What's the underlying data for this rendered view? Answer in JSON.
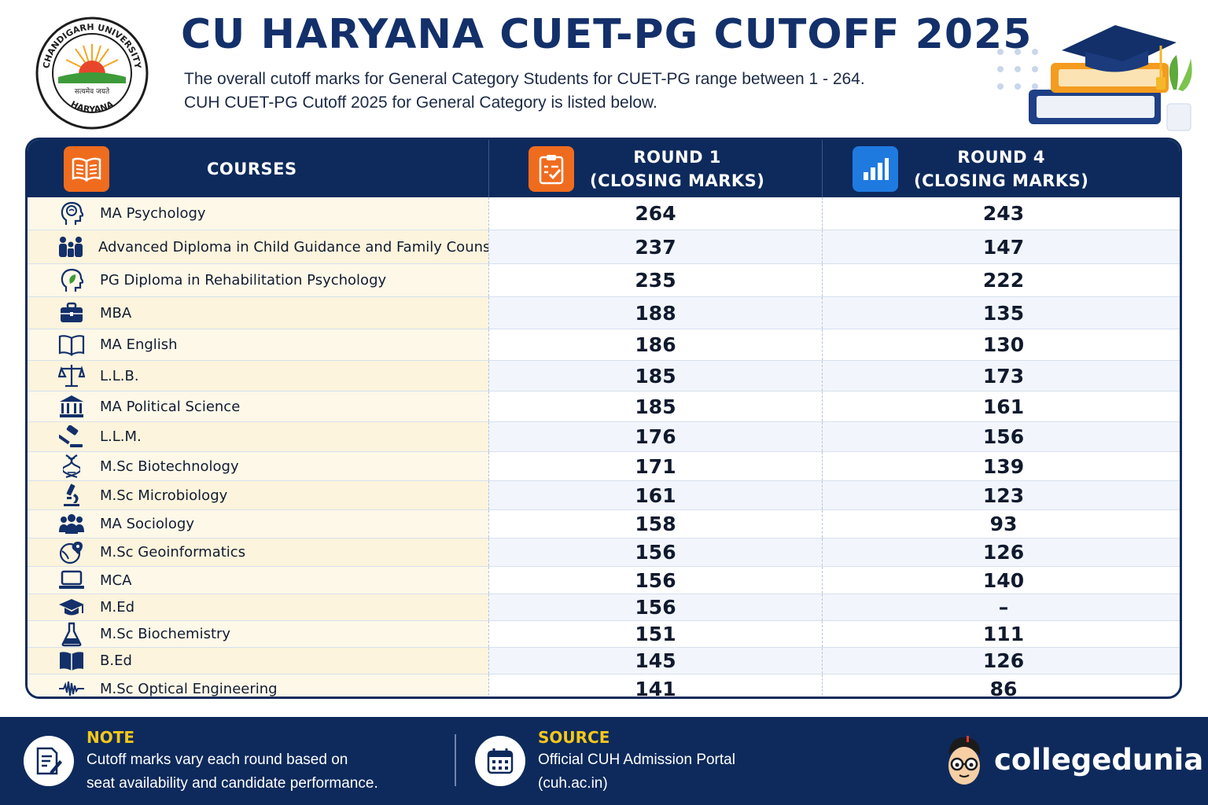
{
  "header": {
    "title": "CU HARYANA CUET-PG CUTOFF 2025",
    "subtitle_line1": "The overall cutoff marks for General Category Students for CUET-PG range between 1 - 264.",
    "subtitle_line2": "CUH CUET-PG Cutoff 2025 for General Category is listed below.",
    "logo": {
      "top_text": "CHANDIGARH UNIVERSITY",
      "bottom_text": "HARYANA",
      "motto": "सत्यमेव जयते"
    }
  },
  "table": {
    "headers": {
      "courses": "COURSES",
      "round1_line1": "ROUND 1",
      "round1_line2": "(CLOSING MARKS)",
      "round4_line1": "ROUND 4",
      "round4_line2": "(CLOSING MARKS)"
    },
    "header_icons": [
      "open-book-icon",
      "clipboard-check-icon",
      "bar-chart-icon"
    ],
    "rows": [
      {
        "icon": "brain-head-icon",
        "course": "MA Psychology",
        "round1": "264",
        "round4": "243"
      },
      {
        "icon": "family-icon",
        "course": "Advanced Diploma in Child Guidance and Family Counselling",
        "round1": "237",
        "round4": "147"
      },
      {
        "icon": "head-leaf-icon",
        "course": "PG Diploma in Rehabilitation Psychology",
        "round1": "235",
        "round4": "222"
      },
      {
        "icon": "briefcase-icon",
        "course": "MBA",
        "round1": "188",
        "round4": "135"
      },
      {
        "icon": "open-book-icon",
        "course": "MA English",
        "round1": "186",
        "round4": "130"
      },
      {
        "icon": "scales-icon",
        "course": "L.L.B.",
        "round1": "185",
        "round4": "173"
      },
      {
        "icon": "government-building-icon",
        "course": "MA Political Science",
        "round1": "185",
        "round4": "161"
      },
      {
        "icon": "gavel-icon",
        "course": "L.L.M.",
        "round1": "176",
        "round4": "156"
      },
      {
        "icon": "dna-icon",
        "course": "M.Sc Biotechnology",
        "round1": "171",
        "round4": "139"
      },
      {
        "icon": "microscope-icon",
        "course": "M.Sc Microbiology",
        "round1": "161",
        "round4": "123"
      },
      {
        "icon": "group-icon",
        "course": "MA Sociology",
        "round1": "158",
        "round4": "93"
      },
      {
        "icon": "globe-pin-icon",
        "course": "M.Sc Geoinformatics",
        "round1": "156",
        "round4": "126"
      },
      {
        "icon": "laptop-icon",
        "course": "MCA",
        "round1": "156",
        "round4": "140"
      },
      {
        "icon": "graduation-cap-icon",
        "course": "M.Ed",
        "round1": "156",
        "round4": "–"
      },
      {
        "icon": "flask-icon",
        "course": "M.Sc Biochemistry",
        "round1": "151",
        "round4": "111"
      },
      {
        "icon": "book-icon",
        "course": "B.Ed",
        "round1": "145",
        "round4": "126"
      },
      {
        "icon": "waveform-icon",
        "course": "M.Sc Optical Engineering",
        "round1": "141",
        "round4": "86"
      }
    ]
  },
  "footer": {
    "note_heading": "NOTE",
    "note_line1": "Cutoff marks vary each round based on",
    "note_line2": "seat availability and candidate performance.",
    "source_heading": "SOURCE",
    "source_line1": "Official CUH Admission Portal",
    "source_line2": "(cuh.ac.in)",
    "brand": "collegedunia"
  },
  "colors": {
    "navy": "#0e2a5c",
    "title_navy": "#13306a",
    "orange": "#ef6c1f",
    "blue_accent": "#1f7ae0",
    "yellow_heading": "#f6c719",
    "course_bg": "#fdf8e8"
  }
}
